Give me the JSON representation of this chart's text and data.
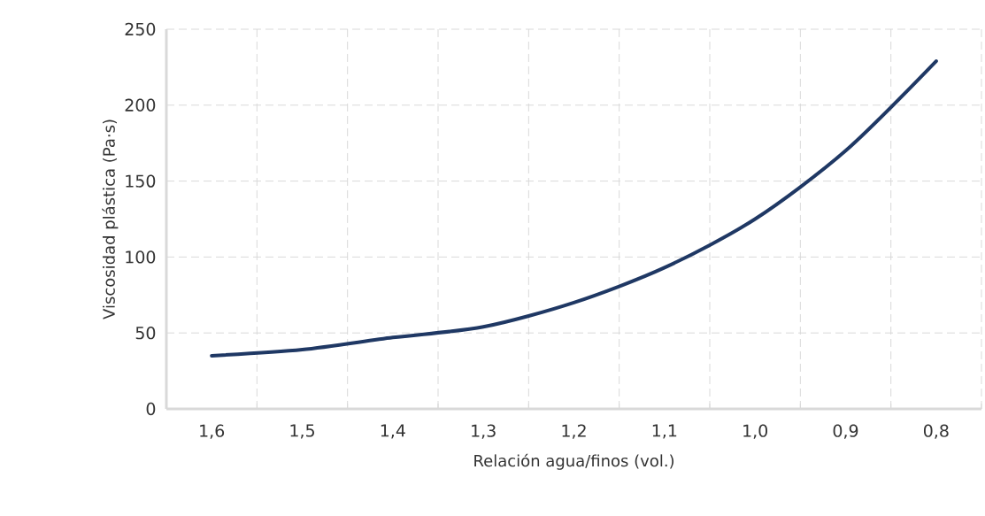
{
  "chart_data": {
    "type": "line",
    "xlabel": "Relación agua/finos (vol.)",
    "ylabel": "Viscosidad plástica (Pa·s)",
    "categories": [
      "1,6",
      "1,5",
      "1,4",
      "1,3",
      "1,2",
      "1,1",
      "1,0",
      "0,9",
      "0,8"
    ],
    "series": [
      {
        "color": "#1f3864",
        "values": [
          35,
          39,
          47,
          54,
          70,
          93,
          125,
          170,
          229
        ]
      }
    ],
    "ylim": [
      0,
      250
    ],
    "yticks": [
      0,
      50,
      100,
      150,
      200,
      250
    ],
    "grid": true,
    "marker": "none",
    "line_style": "solid"
  }
}
